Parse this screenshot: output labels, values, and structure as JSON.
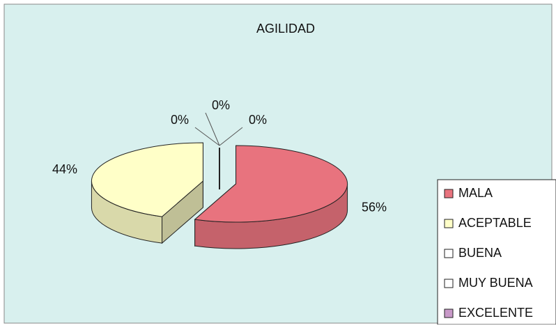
{
  "chart_data": {
    "type": "pie",
    "title": "AGILIDAD",
    "categories": [
      "MALA",
      "ACEPTABLE",
      "BUENA",
      "MUY BUENA",
      "EXCELENTE"
    ],
    "values": [
      56,
      44,
      0,
      0,
      0
    ],
    "value_labels": [
      "56%",
      "44%",
      "0%",
      "0%",
      "0%"
    ],
    "colors": [
      "#e8737e",
      "#ffffc8",
      "#ffffff",
      "#ffffff",
      "#c899c8"
    ],
    "legend": "right"
  }
}
